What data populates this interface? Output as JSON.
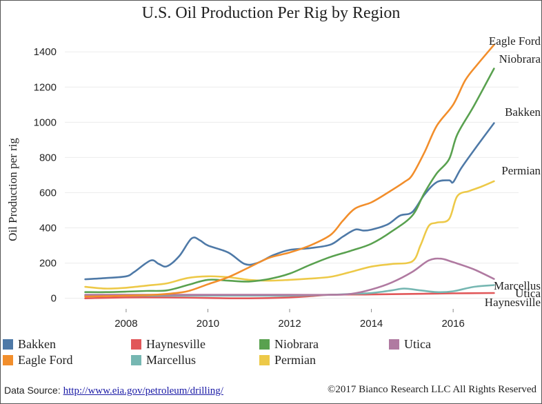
{
  "chart_data": {
    "type": "line",
    "title": "U.S. Oil Production Per Rig by Region",
    "xlabel": "",
    "ylabel": "Oil Production per rig",
    "xlim": [
      2006.5,
      2017.6
    ],
    "ylim": [
      -60,
      1530
    ],
    "x_ticks": [
      "2008",
      "2010",
      "2012",
      "2014",
      "2016"
    ],
    "y_ticks": [
      "0",
      "200",
      "400",
      "600",
      "800",
      "1000",
      "1200",
      "1400"
    ],
    "grid": "horizontal",
    "legend_position": "bottom",
    "series": [
      {
        "name": "Bakken",
        "color": "#4e79a7",
        "label": "Bakken",
        "x": [
          2007.0,
          2007.5,
          2008.0,
          2008.2,
          2008.6,
          2008.8,
          2009.0,
          2009.3,
          2009.6,
          2009.8,
          2010.0,
          2010.5,
          2010.9,
          2011.2,
          2011.6,
          2012.0,
          2012.5,
          2013.0,
          2013.3,
          2013.6,
          2013.8,
          2014.0,
          2014.4,
          2014.7,
          2015.0,
          2015.3,
          2015.6,
          2015.9,
          2016.0,
          2016.2,
          2016.6,
          2017.0
        ],
        "y": [
          108,
          115,
          125,
          150,
          215,
          195,
          182,
          240,
          340,
          330,
          300,
          260,
          195,
          200,
          245,
          275,
          285,
          305,
          350,
          390,
          385,
          390,
          420,
          470,
          490,
          590,
          660,
          670,
          660,
          740,
          870,
          995
        ]
      },
      {
        "name": "Eagle Ford",
        "color": "#f28e2b",
        "label": "Eagle Ford",
        "x": [
          2007.0,
          2007.5,
          2008.0,
          2008.5,
          2009.0,
          2009.5,
          2010.0,
          2010.5,
          2011.0,
          2011.5,
          2012.0,
          2012.5,
          2013.0,
          2013.3,
          2013.6,
          2014.0,
          2014.4,
          2014.8,
          2015.0,
          2015.3,
          2015.6,
          2016.0,
          2016.3,
          2016.6,
          2017.0
        ],
        "y": [
          10,
          12,
          15,
          18,
          25,
          40,
          80,
          120,
          175,
          230,
          260,
          300,
          360,
          440,
          510,
          545,
          600,
          660,
          700,
          830,
          980,
          1100,
          1240,
          1330,
          1440
        ]
      },
      {
        "name": "Niobrara",
        "color": "#59a14f",
        "label": "Niobrara",
        "x": [
          2007.0,
          2007.5,
          2008.0,
          2008.5,
          2009.0,
          2009.5,
          2010.0,
          2010.5,
          2011.0,
          2011.5,
          2012.0,
          2012.5,
          2013.0,
          2013.5,
          2014.0,
          2014.5,
          2015.0,
          2015.3,
          2015.6,
          2015.9,
          2016.1,
          2016.5,
          2017.0
        ],
        "y": [
          35,
          35,
          38,
          42,
          45,
          75,
          105,
          100,
          95,
          110,
          140,
          190,
          235,
          270,
          310,
          380,
          470,
          600,
          710,
          790,
          930,
          1090,
          1305
        ]
      },
      {
        "name": "Permian",
        "color": "#edc948",
        "label": "Permian",
        "x": [
          2007.0,
          2007.5,
          2008.0,
          2008.5,
          2009.0,
          2009.5,
          2010.0,
          2010.5,
          2011.0,
          2011.5,
          2012.0,
          2012.5,
          2013.0,
          2013.5,
          2014.0,
          2014.5,
          2015.0,
          2015.2,
          2015.4,
          2015.6,
          2015.9,
          2016.1,
          2016.4,
          2016.7,
          2017.0
        ],
        "y": [
          65,
          55,
          60,
          72,
          85,
          115,
          125,
          120,
          105,
          100,
          105,
          112,
          122,
          150,
          180,
          195,
          210,
          300,
          410,
          430,
          450,
          580,
          610,
          635,
          665
        ]
      },
      {
        "name": "Utica",
        "color": "#b07aa1",
        "label": "Utica",
        "x": [
          2007.0,
          2008.0,
          2009.0,
          2010.0,
          2011.0,
          2012.0,
          2013.0,
          2013.5,
          2014.0,
          2014.5,
          2015.0,
          2015.4,
          2015.7,
          2016.0,
          2016.5,
          2017.0
        ],
        "y": [
          20,
          20,
          20,
          20,
          20,
          20,
          20,
          25,
          50,
          90,
          150,
          215,
          225,
          205,
          165,
          110
        ]
      },
      {
        "name": "Marcellus",
        "color": "#76b7b2",
        "label": "Marcellus",
        "x": [
          2007.0,
          2008.0,
          2009.0,
          2010.0,
          2011.0,
          2012.0,
          2013.0,
          2013.5,
          2014.0,
          2014.5,
          2014.8,
          2015.2,
          2015.6,
          2016.0,
          2016.5,
          2017.0
        ],
        "y": [
          15,
          15,
          15,
          15,
          15,
          15,
          20,
          25,
          30,
          45,
          55,
          45,
          35,
          40,
          65,
          75
        ]
      },
      {
        "name": "Haynesville",
        "color": "#e15759",
        "label": "Haynesville",
        "x": [
          2007.0,
          2008.0,
          2009.0,
          2010.0,
          2011.0,
          2012.0,
          2012.5,
          2013.0,
          2014.0,
          2015.0,
          2016.0,
          2017.0
        ],
        "y": [
          0,
          5,
          5,
          2,
          0,
          5,
          12,
          20,
          22,
          25,
          28,
          30
        ]
      }
    ]
  },
  "legend": {
    "items": [
      {
        "label": "Bakken",
        "color": "#4e79a7"
      },
      {
        "label": "Haynesville",
        "color": "#e15759"
      },
      {
        "label": "Niobrara",
        "color": "#59a14f"
      },
      {
        "label": "Utica",
        "color": "#b07aa1"
      },
      {
        "label": "Eagle Ford",
        "color": "#f28e2b"
      },
      {
        "label": "Marcellus",
        "color": "#76b7b2"
      },
      {
        "label": "Permian",
        "color": "#edc948"
      }
    ]
  },
  "footer": {
    "source_prefix": "Data Source:",
    "source_link": "http://www.eia.gov/petroleum/drilling/",
    "copyright": "©2017 Bianco Research LLC  All Rights Reserved"
  }
}
